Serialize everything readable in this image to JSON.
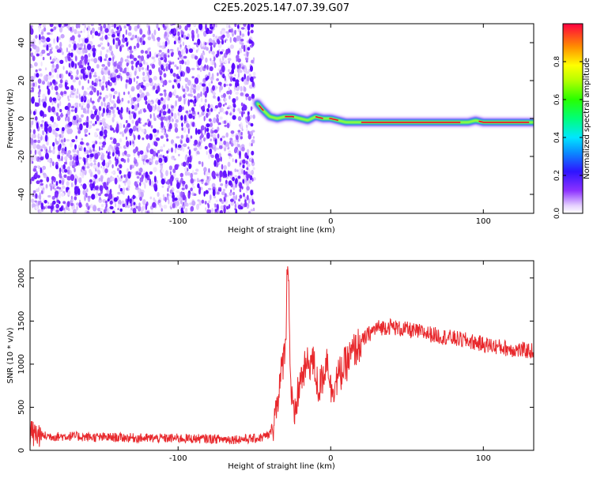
{
  "title": "C2E5.2025.147.07.39.G07",
  "chart_data": [
    {
      "type": "heatmap",
      "xlabel": "Height of straight line (km)",
      "ylabel": "Frequency (Hz)",
      "xlim": [
        -197,
        133
      ],
      "ylim": [
        -50,
        50
      ],
      "x_ticks": [
        -100,
        0,
        100
      ],
      "y_ticks": [
        -40,
        -20,
        0,
        20,
        40
      ],
      "colorbar": {
        "label": "Normalized spectral amplitude",
        "range": [
          0,
          1
        ],
        "ticks": [
          0.0,
          0.2,
          0.4,
          0.6,
          0.8
        ]
      },
      "noise_region_x": [
        -197,
        -50
      ],
      "ridge": {
        "x": [
          -48,
          -45,
          -40,
          -35,
          -30,
          -25,
          -20,
          -15,
          -10,
          -5,
          0,
          5,
          10,
          20,
          40,
          60,
          80,
          90,
          95,
          100,
          110,
          120,
          133
        ],
        "frequency": [
          8,
          5,
          1,
          0,
          1,
          1,
          0,
          -1,
          1,
          0,
          0,
          -1,
          -2,
          -2,
          -2,
          -2,
          -2,
          -2,
          -1,
          -2,
          -2,
          -2,
          -2
        ]
      }
    },
    {
      "type": "line",
      "xlabel": "Height of straight line (km)",
      "ylabel": "SNR (10 * v/v)",
      "xlim": [
        -197,
        133
      ],
      "ylim": [
        0,
        2200
      ],
      "x_ticks": [
        -100,
        0,
        100
      ],
      "y_ticks": [
        0,
        500,
        1000,
        1500,
        2000
      ],
      "series": [
        {
          "color": "#e8282c",
          "x": [
            -197,
            -190,
            -180,
            -170,
            -160,
            -150,
            -140,
            -130,
            -120,
            -110,
            -100,
            -90,
            -80,
            -70,
            -60,
            -50,
            -45,
            -40,
            -37,
            -35,
            -33,
            -30,
            -28,
            -26,
            -24,
            -22,
            -20,
            -18,
            -15,
            -12,
            -10,
            -8,
            -6,
            -4,
            -2,
            0,
            5,
            10,
            15,
            20,
            25,
            30,
            35,
            40,
            45,
            50,
            55,
            60,
            70,
            80,
            90,
            100,
            110,
            120,
            133
          ],
          "values": [
            190,
            170,
            160,
            165,
            155,
            150,
            150,
            145,
            140,
            140,
            140,
            135,
            135,
            130,
            130,
            135,
            150,
            180,
            350,
            600,
            800,
            1200,
            1950,
            700,
            300,
            600,
            800,
            900,
            1000,
            1050,
            900,
            700,
            800,
            950,
            1100,
            700,
            850,
            1000,
            1150,
            1250,
            1350,
            1420,
            1430,
            1440,
            1410,
            1400,
            1380,
            1370,
            1330,
            1300,
            1270,
            1230,
            1200,
            1170,
            1150
          ]
        }
      ]
    }
  ]
}
